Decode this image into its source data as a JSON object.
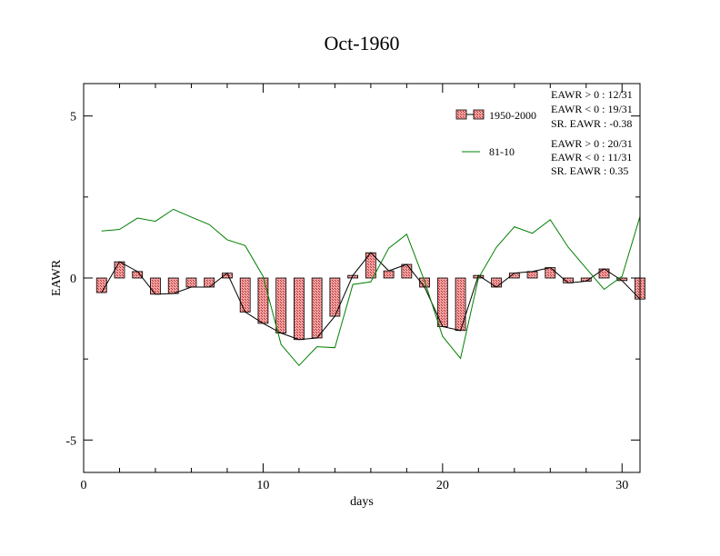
{
  "chart_data": {
    "type": "bar",
    "title": "Oct-1960",
    "xlabel": "days",
    "ylabel": "EAWR",
    "xlim": [
      0,
      31
    ],
    "ylim": [
      -6,
      6
    ],
    "xticks": [
      0,
      10,
      20,
      30
    ],
    "yticks": [
      -5,
      0,
      5
    ],
    "xtick_labels": [
      "0",
      "10",
      "20",
      "30"
    ],
    "ytick_labels": [
      "-5",
      "0",
      "5"
    ],
    "grid": false,
    "legend_placement": "top-right",
    "x": [
      1,
      2,
      3,
      4,
      5,
      6,
      7,
      8,
      9,
      10,
      11,
      12,
      13,
      14,
      15,
      16,
      17,
      18,
      19,
      20,
      21,
      22,
      23,
      24,
      25,
      26,
      27,
      28,
      29,
      30,
      31
    ],
    "series": [
      {
        "name": "1950-2000",
        "kind": "bar",
        "color": "#f08080",
        "values": [
          -0.45,
          0.5,
          0.2,
          -0.5,
          -0.48,
          -0.28,
          -0.28,
          0.15,
          -1.05,
          -1.4,
          -1.7,
          -1.9,
          -1.85,
          -1.18,
          0.08,
          0.78,
          0.22,
          0.42,
          -0.28,
          -1.5,
          -1.62,
          0.08,
          -0.28,
          0.15,
          0.2,
          0.32,
          -0.15,
          -0.1,
          0.28,
          -0.08,
          -0.65
        ]
      },
      {
        "name": "81-10",
        "kind": "line",
        "color": "#008000",
        "values": [
          1.45,
          1.5,
          1.85,
          1.75,
          2.12,
          1.88,
          1.65,
          1.18,
          1.0,
          0.05,
          -2.05,
          -2.7,
          -2.12,
          -2.15,
          -0.2,
          -0.12,
          0.92,
          1.35,
          -0.1,
          -1.8,
          -2.48,
          0.0,
          0.95,
          1.58,
          1.38,
          1.8,
          0.95,
          0.3,
          -0.35,
          0.05,
          1.9
        ]
      }
    ],
    "annotations": [
      {
        "group": "1950-2000",
        "lines": [
          "EAWR > 0 : 12/31",
          "EAWR < 0 : 19/31",
          "SR. EAWR : -0.38"
        ]
      },
      {
        "group": "81-10",
        "lines": [
          "EAWR > 0 : 20/31",
          "EAWR < 0 : 11/31",
          "SR. EAWR :  0.35"
        ]
      }
    ]
  }
}
